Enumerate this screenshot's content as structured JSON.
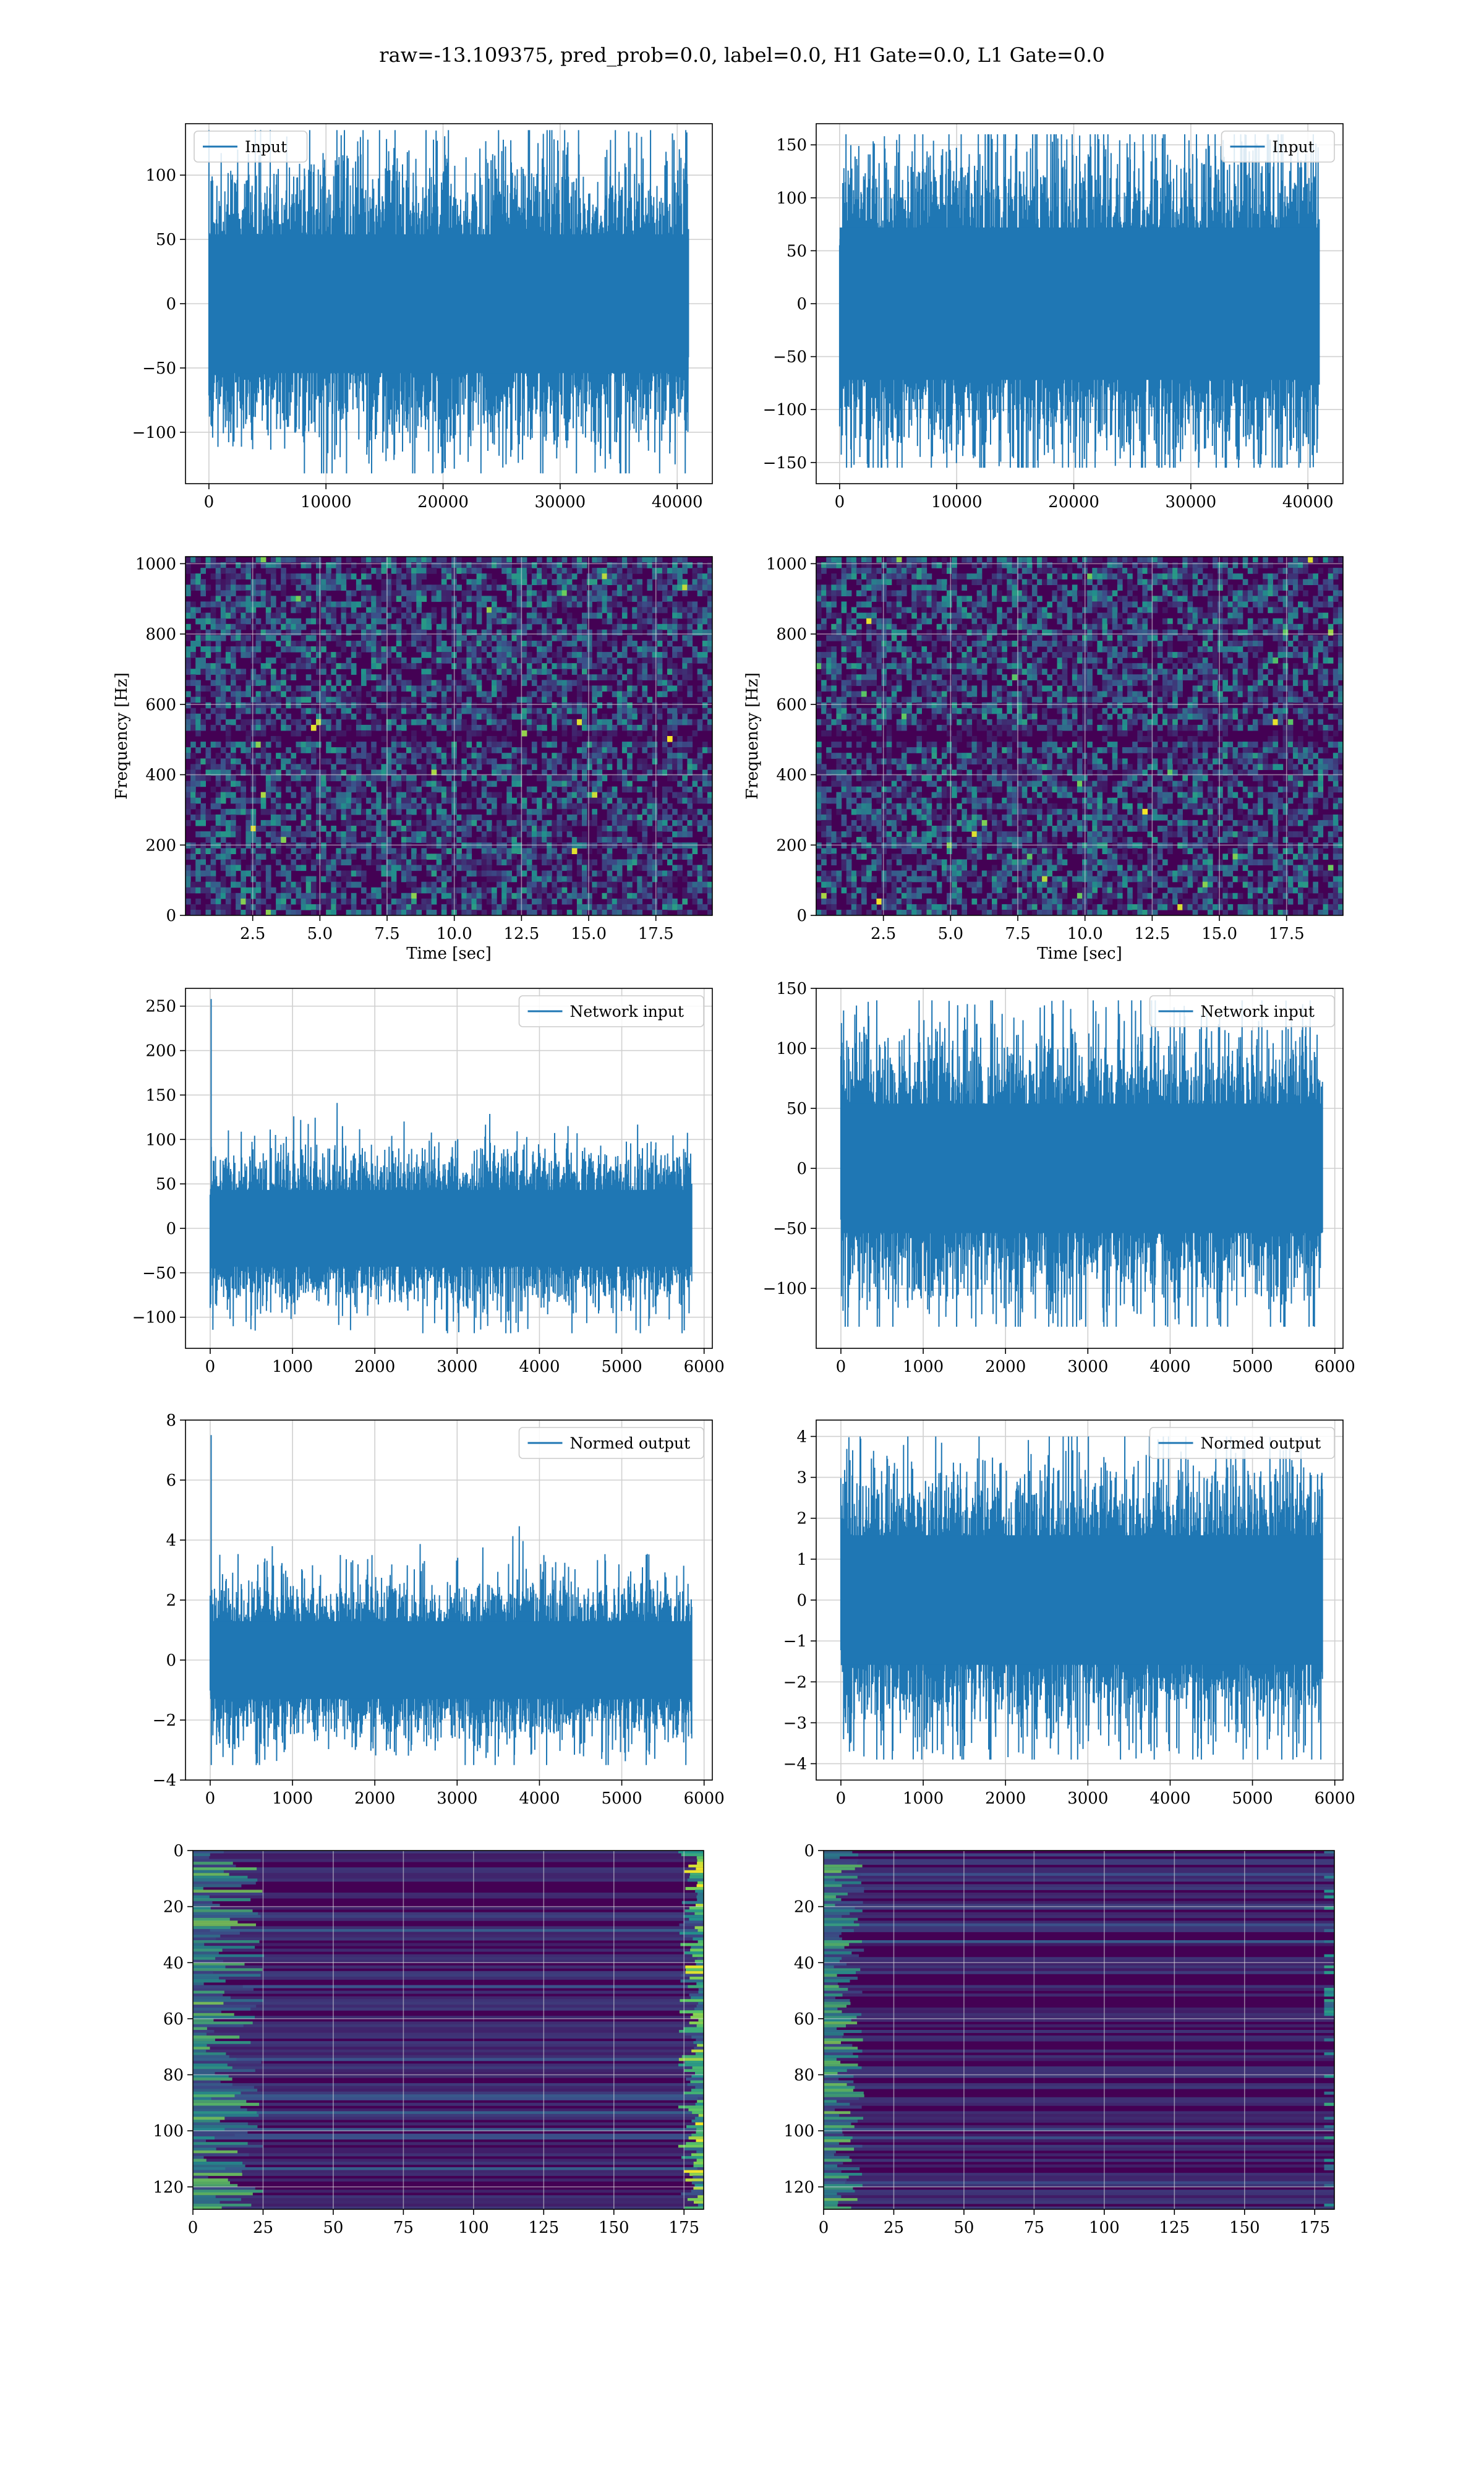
{
  "title": "raw=-13.109375, pred_prob=0.0, label=0.0, H1 Gate=0.0, L1 Gate=0.0",
  "colors": {
    "line": "#1f77b4",
    "grid": "#d0d0d0",
    "viridis_low": "#440154",
    "viridis_high": "#fde725"
  },
  "chart_data": [
    {
      "id": "input-h1",
      "type": "line",
      "legend": "Input",
      "legend_loc": "upper left",
      "xlim": [
        -2000,
        43000
      ],
      "ylim": [
        -140,
        140
      ],
      "xticks": [
        0,
        10000,
        20000,
        30000,
        40000
      ],
      "xtick_labels": [
        "0",
        "10000",
        "20000",
        "30000",
        "40000"
      ],
      "yticks": [
        -100,
        -50,
        0,
        50,
        100
      ],
      "ytick_labels": [
        "−100",
        "−50",
        "0",
        "50",
        "100"
      ],
      "x_max": 40960,
      "envelope": 75,
      "spike_max": 135,
      "spike_min": -132,
      "n_samples": 900,
      "grid": true
    },
    {
      "id": "input-l1",
      "type": "line",
      "legend": "Input",
      "legend_loc": "upper right",
      "xlim": [
        -2000,
        43000
      ],
      "ylim": [
        -170,
        170
      ],
      "xticks": [
        0,
        10000,
        20000,
        30000,
        40000
      ],
      "xtick_labels": [
        "0",
        "10000",
        "20000",
        "30000",
        "40000"
      ],
      "yticks": [
        -150,
        -100,
        -50,
        0,
        50,
        100,
        150
      ],
      "ytick_labels": [
        "−150",
        "−100",
        "−50",
        "0",
        "50",
        "100",
        "150"
      ],
      "x_max": 40960,
      "envelope": 100,
      "spike_max": 160,
      "spike_min": -155,
      "n_samples": 900,
      "grid": true
    },
    {
      "id": "spec-h1",
      "type": "heatmap",
      "xlabel": "Time [sec]",
      "ylabel": "Frequency [Hz]",
      "xlim": [
        0,
        19.6
      ],
      "ylim": [
        0,
        1020
      ],
      "xticks": [
        2.5,
        5.0,
        7.5,
        10.0,
        12.5,
        15.0,
        17.5
      ],
      "xtick_labels": [
        "2.5",
        "5.0",
        "7.5",
        "10.0",
        "12.5",
        "15.0",
        "17.5"
      ],
      "yticks": [
        0,
        200,
        400,
        600,
        800,
        1000
      ],
      "ytick_labels": [
        "0",
        "200",
        "400",
        "600",
        "800",
        "1000"
      ],
      "dark_band_hz": [
        495,
        520
      ],
      "grid": true
    },
    {
      "id": "spec-l1",
      "type": "heatmap",
      "xlabel": "Time [sec]",
      "ylabel": "Frequency [Hz]",
      "xlim": [
        0,
        19.6
      ],
      "ylim": [
        0,
        1020
      ],
      "xticks": [
        2.5,
        5.0,
        7.5,
        10.0,
        12.5,
        15.0,
        17.5
      ],
      "xtick_labels": [
        "2.5",
        "5.0",
        "7.5",
        "10.0",
        "12.5",
        "15.0",
        "17.5"
      ],
      "yticks": [
        0,
        200,
        400,
        600,
        800,
        1000
      ],
      "ytick_labels": [
        "0",
        "200",
        "400",
        "600",
        "800",
        "1000"
      ],
      "dark_band_hz": [
        495,
        520
      ],
      "grid": true
    },
    {
      "id": "netin-h1",
      "type": "line",
      "legend": "Network input",
      "legend_loc": "upper right",
      "xlim": [
        -300,
        6100
      ],
      "ylim": [
        -135,
        270
      ],
      "xticks": [
        0,
        1000,
        2000,
        3000,
        4000,
        5000,
        6000
      ],
      "xtick_labels": [
        "0",
        "1000",
        "2000",
        "3000",
        "4000",
        "5000",
        "6000"
      ],
      "yticks": [
        -100,
        -50,
        0,
        50,
        100,
        150,
        200,
        250
      ],
      "ytick_labels": [
        "−100",
        "−50",
        "0",
        "50",
        "100",
        "150",
        "200",
        "250"
      ],
      "x_max": 5850,
      "envelope": 60,
      "spike_max": 258,
      "spike_min": -118,
      "n_samples": 900,
      "grid": true
    },
    {
      "id": "netin-l1",
      "type": "line",
      "legend": "Network input",
      "legend_loc": "upper right",
      "xlim": [
        -300,
        6100
      ],
      "ylim": [
        -150,
        150
      ],
      "xticks": [
        0,
        1000,
        2000,
        3000,
        4000,
        5000,
        6000
      ],
      "xtick_labels": [
        "0",
        "1000",
        "2000",
        "3000",
        "4000",
        "5000",
        "6000"
      ],
      "yticks": [
        -100,
        -50,
        0,
        50,
        100,
        150
      ],
      "ytick_labels": [
        "−100",
        "−50",
        "0",
        "50",
        "100",
        "150"
      ],
      "x_max": 5850,
      "envelope": 75,
      "spike_max": 140,
      "spike_min": -132,
      "n_samples": 900,
      "grid": true
    },
    {
      "id": "normed-h1",
      "type": "line",
      "legend": "Normed output",
      "legend_loc": "upper right",
      "xlim": [
        -300,
        6100
      ],
      "ylim": [
        -4,
        8
      ],
      "xticks": [
        0,
        1000,
        2000,
        3000,
        4000,
        5000,
        6000
      ],
      "xtick_labels": [
        "0",
        "1000",
        "2000",
        "3000",
        "4000",
        "5000",
        "6000"
      ],
      "yticks": [
        -4,
        -2,
        0,
        2,
        4,
        6,
        8
      ],
      "ytick_labels": [
        "−4",
        "−2",
        "0",
        "2",
        "4",
        "6",
        "8"
      ],
      "x_max": 5850,
      "envelope": 1.8,
      "spike_max": 7.5,
      "spike_min": -3.5,
      "n_samples": 900,
      "grid": true
    },
    {
      "id": "normed-l1",
      "type": "line",
      "legend": "Normed output",
      "legend_loc": "upper right",
      "xlim": [
        -300,
        6100
      ],
      "ylim": [
        -4.4,
        4.4
      ],
      "xticks": [
        0,
        1000,
        2000,
        3000,
        4000,
        5000,
        6000
      ],
      "xtick_labels": [
        "0",
        "1000",
        "2000",
        "3000",
        "4000",
        "5000",
        "6000"
      ],
      "yticks": [
        -4,
        -3,
        -2,
        -1,
        0,
        1,
        2,
        3,
        4
      ],
      "ytick_labels": [
        "−4",
        "−3",
        "−2",
        "−1",
        "0",
        "1",
        "2",
        "3",
        "4"
      ],
      "x_max": 5850,
      "envelope": 2.2,
      "spike_max": 4.0,
      "spike_min": -3.9,
      "n_samples": 900,
      "grid": true
    },
    {
      "id": "feat-h1",
      "type": "heatmap",
      "y_inverted": true,
      "xlim": [
        0,
        182
      ],
      "ylim": [
        0,
        128
      ],
      "xticks": [
        0,
        25,
        50,
        75,
        100,
        125,
        150,
        175
      ],
      "xtick_labels": [
        "0",
        "25",
        "50",
        "75",
        "100",
        "125",
        "150",
        "175"
      ],
      "yticks": [
        0,
        20,
        40,
        60,
        80,
        100,
        120
      ],
      "ytick_labels": [
        "0",
        "20",
        "40",
        "60",
        "80",
        "100",
        "120"
      ],
      "rows": 128,
      "grid": true
    },
    {
      "id": "feat-l1",
      "type": "heatmap",
      "y_inverted": true,
      "xlim": [
        0,
        182
      ],
      "ylim": [
        0,
        128
      ],
      "xticks": [
        0,
        25,
        50,
        75,
        100,
        125,
        150,
        175
      ],
      "xtick_labels": [
        "0",
        "25",
        "50",
        "75",
        "100",
        "125",
        "150",
        "175"
      ],
      "yticks": [
        0,
        20,
        40,
        60,
        80,
        100,
        120
      ],
      "ytick_labels": [
        "0",
        "20",
        "40",
        "60",
        "80",
        "100",
        "120"
      ],
      "rows": 128,
      "grid": true
    }
  ]
}
